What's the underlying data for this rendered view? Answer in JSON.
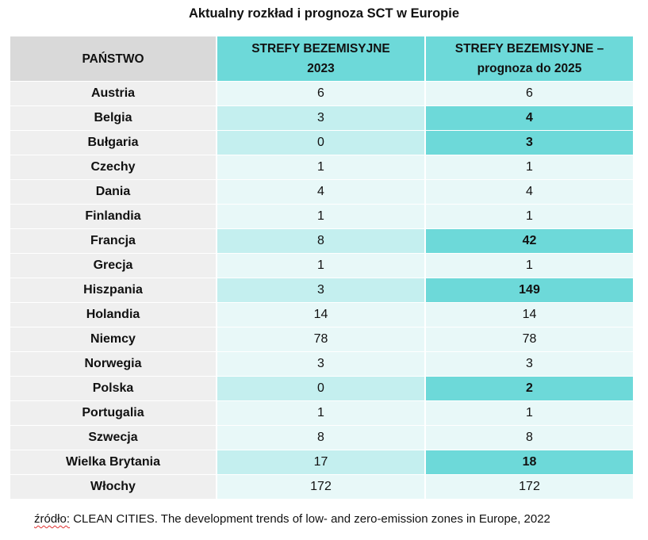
{
  "title": "Aktualny rozkład i prognoza SCT w Europie",
  "table": {
    "headers": {
      "country": "PAŃSTWO",
      "col2023_line1": "STREFY BEZEMISYJNE",
      "col2023_line2": "2023",
      "col2025_line1": "STREFY BEZEMISYJNE –",
      "col2025_line2": "prognoza do 2025"
    },
    "rows": [
      {
        "country": "Austria",
        "v2023": "6",
        "v2025": "6",
        "highlight": false
      },
      {
        "country": "Belgia",
        "v2023": "3",
        "v2025": "4",
        "highlight": true
      },
      {
        "country": "Bułgaria",
        "v2023": "0",
        "v2025": "3",
        "highlight": true
      },
      {
        "country": "Czechy",
        "v2023": "1",
        "v2025": "1",
        "highlight": false
      },
      {
        "country": "Dania",
        "v2023": "4",
        "v2025": "4",
        "highlight": false
      },
      {
        "country": "Finlandia",
        "v2023": "1",
        "v2025": "1",
        "highlight": false
      },
      {
        "country": "Francja",
        "v2023": "8",
        "v2025": "42",
        "highlight": true
      },
      {
        "country": "Grecja",
        "v2023": "1",
        "v2025": "1",
        "highlight": false
      },
      {
        "country": "Hiszpania",
        "v2023": "3",
        "v2025": "149",
        "highlight": true
      },
      {
        "country": "Holandia",
        "v2023": "14",
        "v2025": "14",
        "highlight": false
      },
      {
        "country": "Niemcy",
        "v2023": "78",
        "v2025": "78",
        "highlight": false
      },
      {
        "country": "Norwegia",
        "v2023": "3",
        "v2025": "3",
        "highlight": false
      },
      {
        "country": "Polska",
        "v2023": "0",
        "v2025": "2",
        "highlight": true
      },
      {
        "country": "Portugalia",
        "v2023": "1",
        "v2025": "1",
        "highlight": false
      },
      {
        "country": "Szwecja",
        "v2023": "8",
        "v2025": "8",
        "highlight": false
      },
      {
        "country": "Wielka Brytania",
        "v2023": "17",
        "v2025": "18",
        "highlight": true
      },
      {
        "country": "Włochy",
        "v2023": "172",
        "v2025": "172",
        "highlight": false
      }
    ]
  },
  "source": {
    "prefix": "źródło:",
    "text": " CLEAN CITIES. The development trends of low- and zero-emission zones in Europe, 2022"
  },
  "colors": {
    "header_accent": "#6dd9d9",
    "header_gray": "#d9d9d9",
    "cell_light": "#e8f8f8",
    "cell_mid": "#c4efef"
  }
}
